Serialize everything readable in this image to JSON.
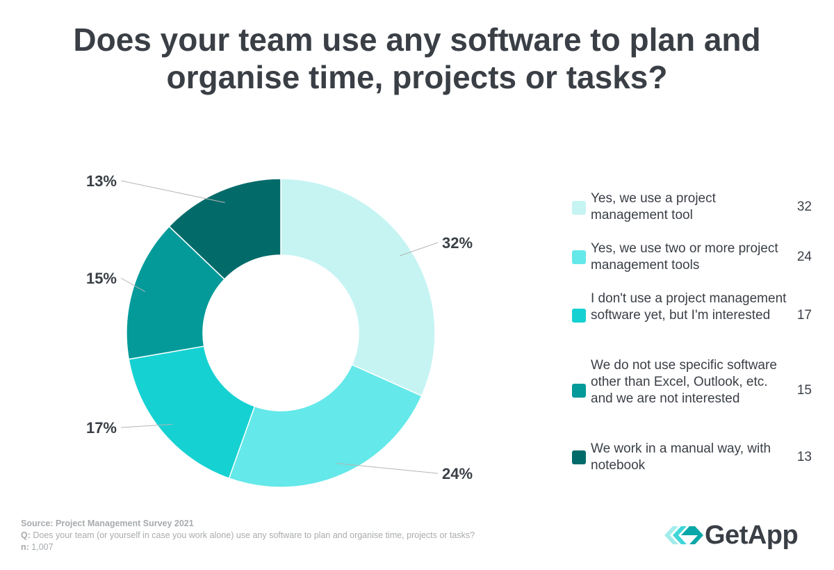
{
  "title": "Does your team use any software to plan and organise time, projects or tasks?",
  "chart_data": {
    "type": "pie",
    "style": "donut",
    "slices": [
      {
        "label": "Yes, we use a project management tool",
        "value": 32,
        "display": "32%",
        "color": "#c5f4f3"
      },
      {
        "label": "Yes, we use two or more project management tools",
        "value": 24,
        "display": "24%",
        "color": "#64e8e9"
      },
      {
        "label": "I don't use a project management software yet, but I'm interested",
        "value": 17,
        "display": "17%",
        "color": "#16d1d2"
      },
      {
        "label": "We do not use specific software other than Excel, Outlook, etc. and we are not interested",
        "value": 15,
        "display": "15%",
        "color": "#049a9a"
      },
      {
        "label": "We work in a manual way, with notebook",
        "value": 13,
        "display": "13%",
        "color": "#026b6a"
      }
    ],
    "legend_placement": "right"
  },
  "legend": {
    "items": [
      {
        "label": "Yes, we use a project management tool",
        "value": "32"
      },
      {
        "label": "Yes, we use two or more project management tools",
        "value": "24"
      },
      {
        "label": "I don't use a project management software yet, but I'm interested",
        "value": "17"
      },
      {
        "label": "We do not use specific software other than Excel, Outlook, etc. and we are not interested",
        "value": "15"
      },
      {
        "label": "We work in a manual way, with notebook",
        "value": "13"
      }
    ]
  },
  "footer": {
    "source": "Source: Project Management Survey 2021",
    "question_key": "Q:",
    "question": " Does your team (or yourself in case you work alone) use any software to plan and organise time, projects or tasks?",
    "n_key": "n:",
    "n_value": " 1,007"
  },
  "logo": {
    "text": "GetApp",
    "icon": "getapp-chevrons-icon",
    "colors": [
      "#a3ecec",
      "#3fd6d8",
      "#0aa7a8"
    ]
  }
}
